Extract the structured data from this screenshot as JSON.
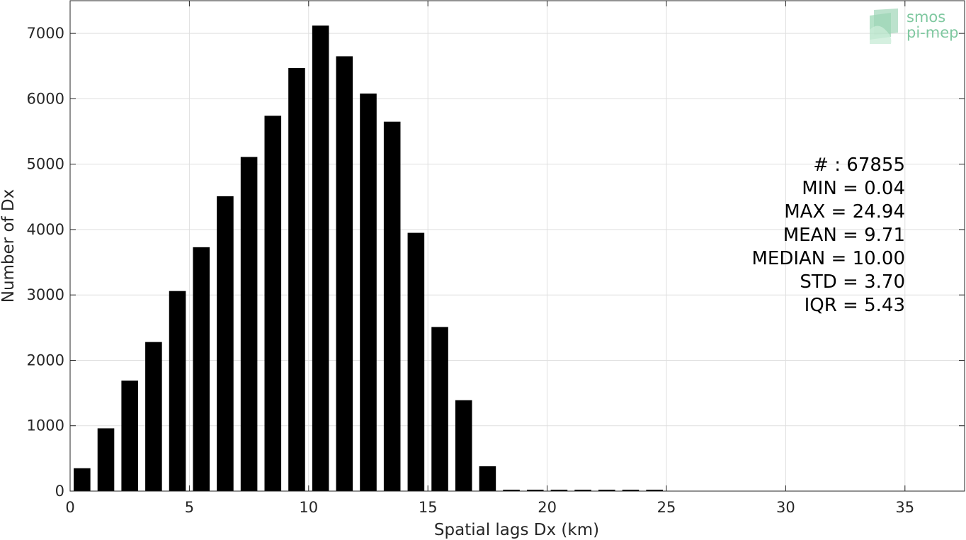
{
  "chart_data": {
    "type": "bar",
    "title": "",
    "xlabel": "Spatial lags Dx (km)",
    "ylabel": "Number of Dx",
    "xlim": [
      0,
      37.5
    ],
    "ylim": [
      0,
      7500
    ],
    "xticks": [
      0,
      5,
      10,
      15,
      20,
      25,
      30,
      35
    ],
    "yticks": [
      0,
      1000,
      2000,
      3000,
      4000,
      5000,
      6000,
      7000
    ],
    "grid": true,
    "bar_color": "#000000",
    "bar_width": 0.7,
    "x": [
      0.5,
      1.5,
      2.5,
      3.5,
      4.5,
      5.5,
      6.5,
      7.5,
      8.5,
      9.5,
      10.5,
      11.5,
      12.5,
      13.5,
      14.5,
      15.5,
      16.5,
      17.5,
      18.5,
      19.5,
      20.5,
      21.5,
      22.5,
      23.5,
      24.5
    ],
    "values": [
      350,
      960,
      1690,
      2280,
      3060,
      3730,
      4510,
      5110,
      5740,
      6470,
      7120,
      6650,
      6080,
      5650,
      3950,
      2510,
      1390,
      380,
      10,
      10,
      8,
      8,
      8,
      8,
      8
    ]
  },
  "stats": [
    "# : 67855",
    "MIN = 0.04",
    "MAX =  24.94",
    "MEAN = 9.71",
    "MEDIAN = 10.00",
    "STD = 3.70",
    "IQR = 5.43"
  ],
  "logo": {
    "line1": "smos",
    "line2": "pi-mep",
    "color": "#7fc8a0"
  }
}
